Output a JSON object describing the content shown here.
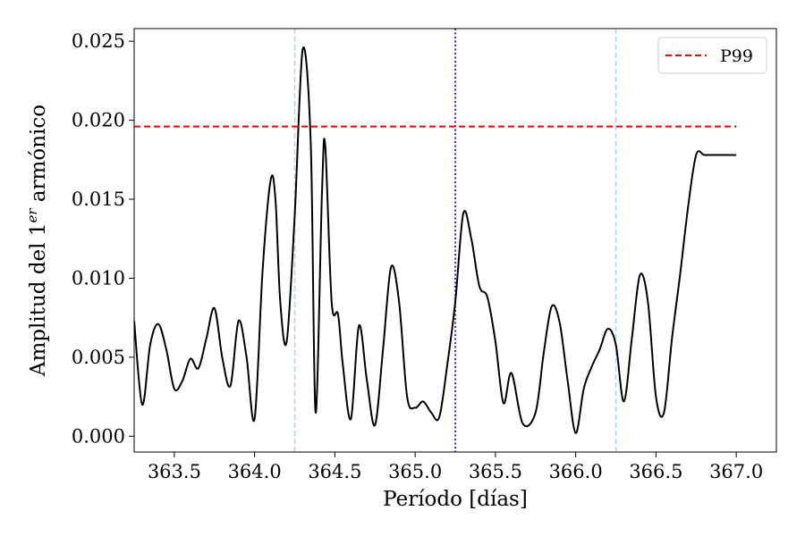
{
  "chart_data": {
    "type": "line",
    "xlabel": "Período [días]",
    "ylabel": "Amplitud del 1",
    "ylabel_sup": "er",
    "ylabel_end": " armónico",
    "xlim": [
      363.25,
      367.25
    ],
    "ylim": [
      -0.001,
      0.0258
    ],
    "x_ticks": [
      363.5,
      364.0,
      364.5,
      365.0,
      365.5,
      366.0,
      366.5,
      367.0
    ],
    "x_tick_labels": [
      "363.5",
      "364.0",
      "364.5",
      "365.0",
      "365.5",
      "366.0",
      "366.5",
      "367.0"
    ],
    "y_ticks": [
      0.0,
      0.005,
      0.01,
      0.015,
      0.02,
      0.025
    ],
    "y_tick_labels": [
      "0.000",
      "0.005",
      "0.010",
      "0.015",
      "0.020",
      "0.025"
    ],
    "grid": false,
    "legend_position": "top-right",
    "series": [
      {
        "color": "#000000",
        "style": "solid",
        "x": [
          363.25,
          363.3,
          363.35,
          363.4,
          363.45,
          363.5,
          363.55,
          363.6,
          363.65,
          363.7,
          363.75,
          363.8,
          363.85,
          363.9,
          363.95,
          364.0,
          364.05,
          364.1,
          364.13,
          364.16,
          364.2,
          364.25,
          364.3,
          364.35,
          364.38,
          364.42,
          364.44,
          364.48,
          364.52,
          364.55,
          364.6,
          364.65,
          364.7,
          364.75,
          364.8,
          364.85,
          364.9,
          364.95,
          365.0,
          365.05,
          365.1,
          365.15,
          365.2,
          365.25,
          365.3,
          365.35,
          365.4,
          365.45,
          365.5,
          365.55,
          365.6,
          365.67,
          365.75,
          365.8,
          365.85,
          365.9,
          365.95,
          366.0,
          366.05,
          366.1,
          366.15,
          366.2,
          366.25,
          366.3,
          366.35,
          366.4,
          366.45,
          366.5,
          366.55,
          366.6,
          366.65,
          366.7,
          366.75,
          366.8,
          366.85,
          366.88,
          366.92,
          366.96,
          367.0
        ],
        "y": [
          0.0073,
          0.002,
          0.0058,
          0.0071,
          0.0055,
          0.003,
          0.0035,
          0.0049,
          0.0043,
          0.0062,
          0.0081,
          0.0049,
          0.0032,
          0.0073,
          0.005,
          0.0011,
          0.0105,
          0.0162,
          0.015,
          0.0085,
          0.006,
          0.014,
          0.0245,
          0.0185,
          0.0015,
          0.0155,
          0.0184,
          0.0085,
          0.0077,
          0.0045,
          0.0011,
          0.007,
          0.0035,
          0.0007,
          0.0055,
          0.0107,
          0.0085,
          0.0025,
          0.0018,
          0.0022,
          0.0015,
          0.0012,
          0.0045,
          0.0085,
          0.0141,
          0.0125,
          0.0095,
          0.0088,
          0.006,
          0.0021,
          0.004,
          0.0008,
          0.0015,
          0.0052,
          0.0082,
          0.0072,
          0.0035,
          0.0002,
          0.003,
          0.0044,
          0.0055,
          0.0068,
          0.0058,
          0.0022,
          0.0062,
          0.0102,
          0.0085,
          0.0025,
          0.0015,
          0.0062,
          0.0102,
          0.0145,
          0.0178,
          0.0178,
          0.0178,
          0.0178,
          0.0178,
          0.0178,
          0.0178
        ]
      },
      {
        "name": "P99",
        "color": "#ff0000",
        "style": "dashed",
        "x": [
          363.25,
          367.0
        ],
        "y": [
          0.0196,
          0.0196
        ]
      }
    ],
    "vlines": [
      {
        "x": 364.25,
        "color": "#add8e6",
        "style": "dashed"
      },
      {
        "x": 365.25,
        "color": "#0000cd",
        "style": "dotted"
      },
      {
        "x": 366.25,
        "color": "#add8e6",
        "style": "dashed"
      }
    ]
  }
}
